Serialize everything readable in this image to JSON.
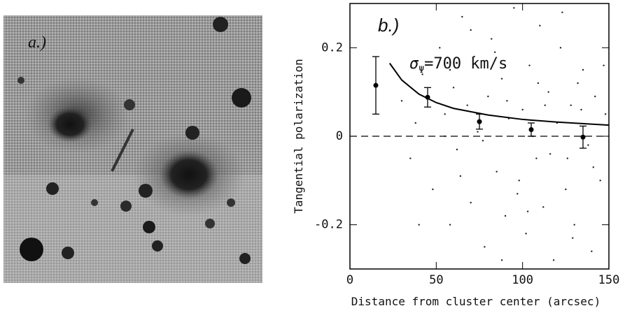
{
  "panel_a": {
    "label": "a.)"
  },
  "chart_data": {
    "type": "scatter",
    "panel_label": "b.)",
    "annotation": {
      "symbol": "σ",
      "subscript": "Ψ",
      "text": "=700 km/s"
    },
    "xlabel": "Distance from cluster center (arcsec)",
    "ylabel": "Tangential polarization",
    "xlim": [
      0,
      150
    ],
    "ylim": [
      -0.3,
      0.3
    ],
    "xticks": [
      0,
      50,
      100,
      150
    ],
    "yticks": [
      -0.2,
      0,
      0.2
    ],
    "zero_line": true,
    "series": [
      {
        "type": "scatter",
        "color": "#222",
        "x": [
          30,
          35,
          38,
          42,
          48,
          52,
          55,
          58,
          60,
          62,
          65,
          68,
          70,
          72,
          74,
          78,
          80,
          82,
          85,
          88,
          90,
          92,
          95,
          98,
          100,
          102,
          104,
          106,
          108,
          110,
          112,
          115,
          118,
          120,
          122,
          125,
          128,
          130,
          132,
          135,
          138,
          140,
          142,
          145,
          148,
          58,
          64,
          70,
          77,
          84,
          91,
          97,
          103,
          109,
          116,
          123,
          129,
          134,
          141,
          147,
          40,
          55,
          88,
          113,
          126
        ],
        "values": [
          0.08,
          -0.05,
          0.03,
          0.14,
          -0.12,
          0.2,
          0.05,
          -0.2,
          0.11,
          -0.03,
          0.27,
          0.07,
          -0.15,
          0.18,
          0.01,
          -0.25,
          0.09,
          0.22,
          -0.08,
          0.13,
          -0.18,
          0.04,
          0.29,
          -0.1,
          0.06,
          -0.22,
          0.16,
          0.0,
          -0.05,
          0.25,
          -0.16,
          0.1,
          -0.28,
          0.03,
          0.2,
          -0.12,
          0.07,
          -0.2,
          0.12,
          0.15,
          -0.02,
          -0.26,
          0.09,
          -0.1,
          0.05,
          0.15,
          -0.09,
          0.24,
          -0.01,
          0.19,
          0.08,
          -0.13,
          -0.17,
          0.12,
          -0.04,
          0.28,
          -0.23,
          0.06,
          -0.07,
          0.16,
          -0.2,
          0.0,
          -0.28,
          0.07,
          -0.05
        ]
      },
      {
        "type": "errorbar",
        "color": "#000",
        "x": [
          15,
          45,
          75,
          105,
          135
        ],
        "values": [
          0.115,
          0.088,
          0.033,
          0.015,
          -0.002
        ],
        "errors": [
          0.065,
          0.022,
          0.017,
          0.015,
          0.025
        ]
      },
      {
        "type": "line",
        "color": "#000",
        "x": [
          23,
          30,
          40,
          50,
          60,
          80,
          100,
          120,
          150
        ],
        "values": [
          0.165,
          0.127,
          0.095,
          0.076,
          0.063,
          0.048,
          0.038,
          0.032,
          0.025
        ]
      }
    ]
  }
}
